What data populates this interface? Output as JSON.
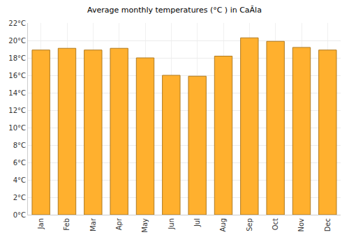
{
  "chart_data": {
    "type": "bar",
    "title": "Average monthly temperatures (°C ) in CaĂla",
    "categories": [
      "Jan",
      "Feb",
      "Mar",
      "Apr",
      "May",
      "Jun",
      "Jul",
      "Aug",
      "Sep",
      "Oct",
      "Nov",
      "Dec"
    ],
    "values": [
      18.9,
      19.1,
      18.9,
      19.1,
      18.0,
      16.0,
      15.9,
      18.2,
      20.3,
      19.9,
      19.2,
      18.9
    ],
    "color": "#ffb02e",
    "ylim": [
      0,
      22
    ],
    "yticks": [
      {
        "value": 0,
        "label": "0°C"
      },
      {
        "value": 2,
        "label": "2°C"
      },
      {
        "value": 4,
        "label": "4°C"
      },
      {
        "value": 6,
        "label": "6°C"
      },
      {
        "value": 8,
        "label": "8°C"
      },
      {
        "value": 10,
        "label": "10°C"
      },
      {
        "value": 12,
        "label": "12°C"
      },
      {
        "value": 14,
        "label": "14°C"
      },
      {
        "value": 16,
        "label": "16°C"
      },
      {
        "value": 18,
        "label": "18°C"
      },
      {
        "value": 20,
        "label": "20°C"
      },
      {
        "value": 22,
        "label": "22°C"
      }
    ],
    "grid": true
  }
}
